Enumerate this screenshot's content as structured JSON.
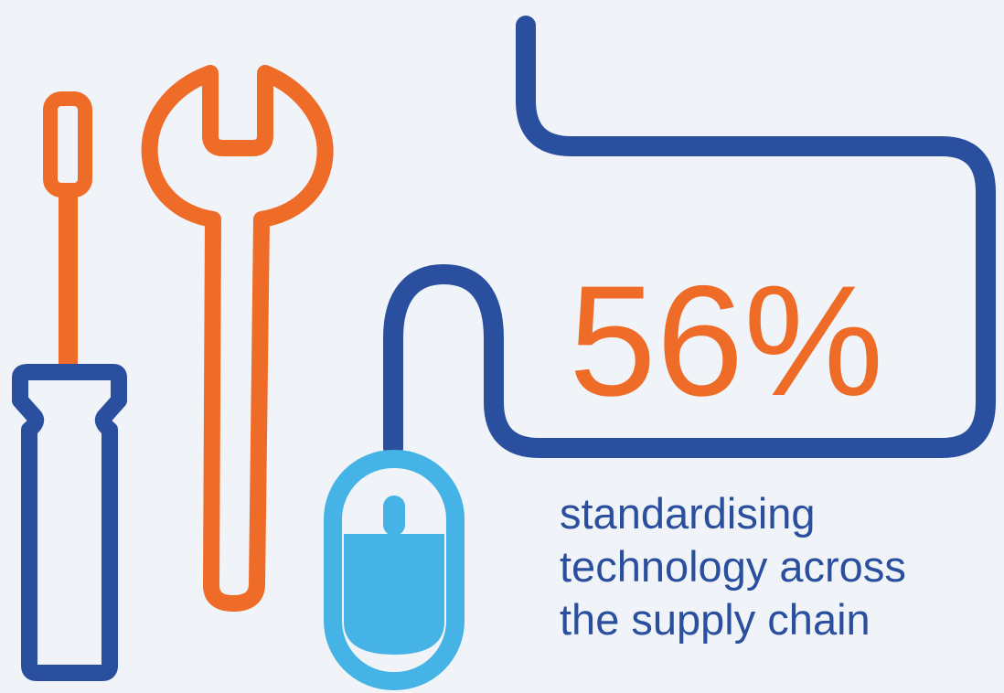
{
  "stat": {
    "value": "56%",
    "caption": [
      "standardising",
      "technology across",
      "the supply chain"
    ]
  }
}
